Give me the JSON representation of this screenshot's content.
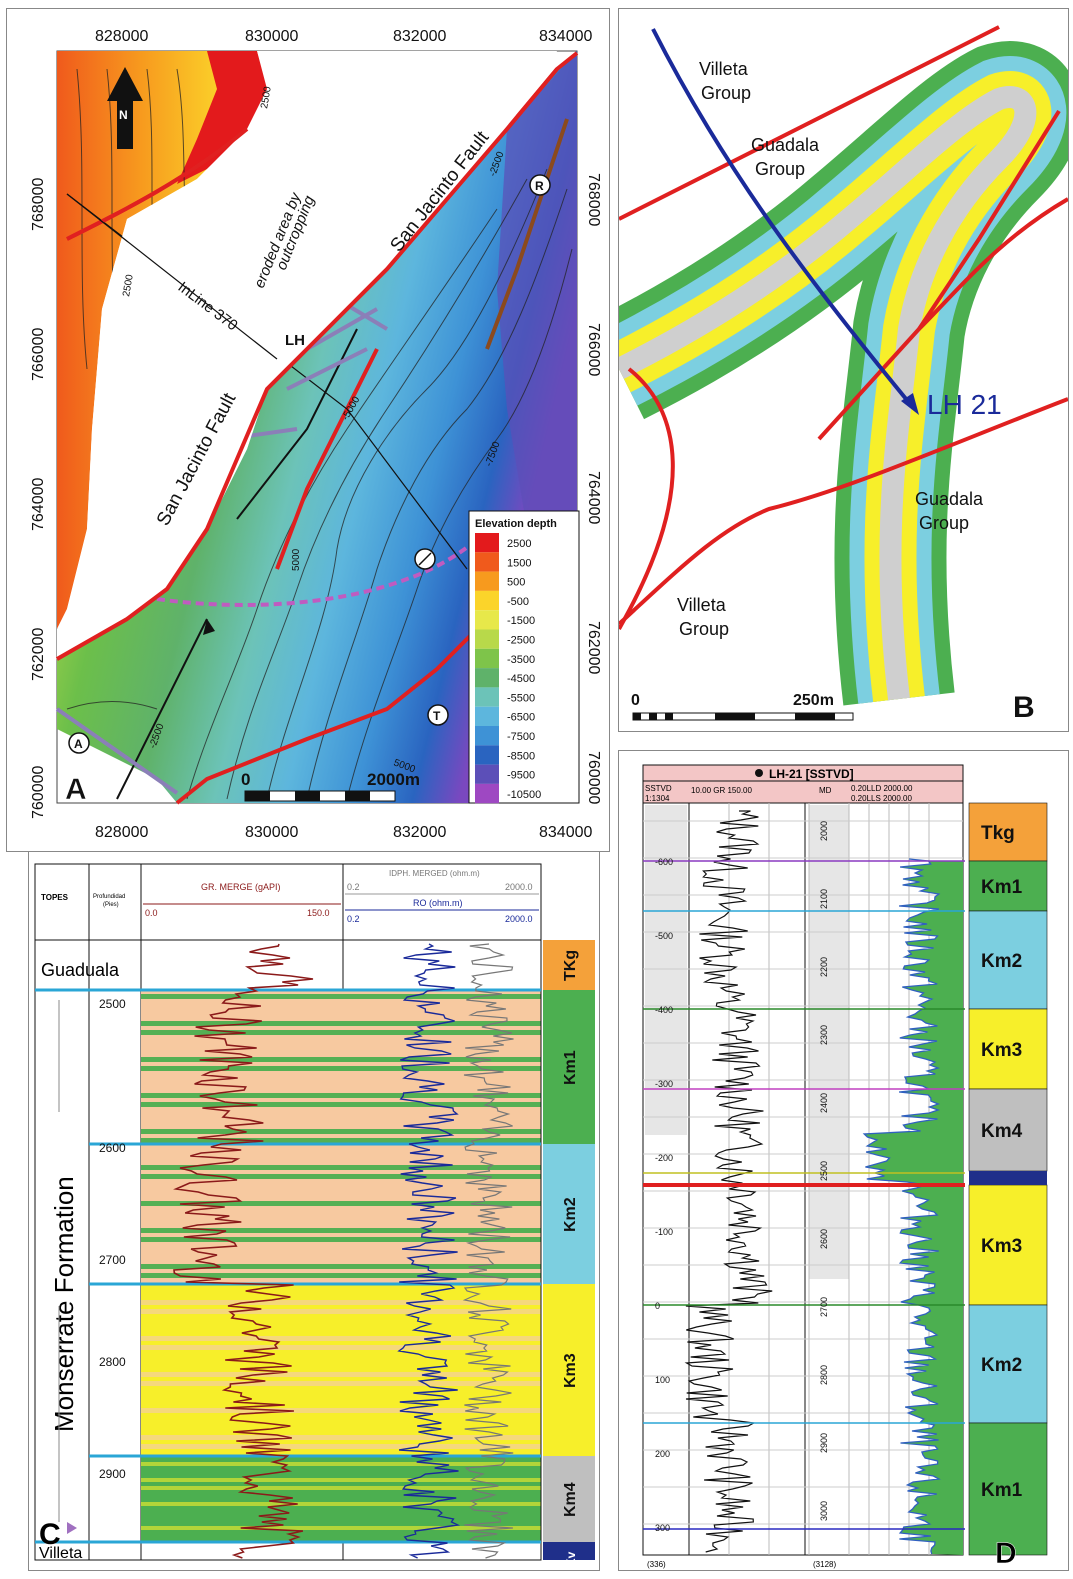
{
  "panel_a": {
    "letter": "A",
    "x_ticks": [
      "828000",
      "830000",
      "832000",
      "834000"
    ],
    "y_ticks": [
      "768000",
      "766000",
      "764000",
      "762000",
      "760000"
    ],
    "north": "N",
    "fault_label": "San Jacinto Fault",
    "eroded": "eroded area by",
    "outcropping": "outcropping",
    "inline": "InLine 370",
    "lh": "LH",
    "markers": [
      "R",
      "A",
      "T"
    ],
    "contours": [
      "2500",
      "2500",
      "-2500",
      "-7500",
      "-5000",
      "5000",
      "5000",
      "-2500"
    ],
    "scale_zero": "0",
    "scale_end": "2000m",
    "legend_title": "Elevation depth",
    "legend": [
      {
        "label": "2500",
        "color": "#e31a1c"
      },
      {
        "label": "1500",
        "color": "#f05a1c"
      },
      {
        "label": "500",
        "color": "#f79a1e"
      },
      {
        "label": "-500",
        "color": "#fbd42a"
      },
      {
        "label": "-1500",
        "color": "#e7e84a"
      },
      {
        "label": "-2500",
        "color": "#b8d94a"
      },
      {
        "label": "-3500",
        "color": "#7ec44a"
      },
      {
        "label": "-4500",
        "color": "#5fb26a"
      },
      {
        "label": "-5500",
        "color": "#6cc3b8"
      },
      {
        "label": "-6500",
        "color": "#5db6dd"
      },
      {
        "label": "-7500",
        "color": "#3e92d6"
      },
      {
        "label": "-8500",
        "color": "#2a64c0"
      },
      {
        "label": "-9500",
        "color": "#5c4fb8"
      },
      {
        "label": "-10500",
        "color": "#9e48c2"
      }
    ]
  },
  "panel_b": {
    "letter": "B",
    "villeta": "Villeta",
    "guadala": "Guadala",
    "group": "Group",
    "well": "LH 21",
    "scale_zero": "0",
    "scale_end": "250m"
  },
  "panel_c": {
    "letter": "C",
    "h_topes": "TOPES",
    "h_prof": "Profundidad",
    "h_prof2": "(Pies)",
    "gr_title": "GR. MERGE (gAPI)",
    "gr_min": "0.0",
    "gr_max": "150.0",
    "idph_title": "IDPH. MERGED (ohm.m)",
    "idph_min": "0.2",
    "idph_max": "2000.0",
    "ro_title": "RO (ohm.m)",
    "ro_min": "0.2",
    "ro_max": "2000.0",
    "guaduala": "Guaduala",
    "formation": "Monserrate Formation",
    "villeta": "Villeta",
    "depths": [
      "2500",
      "2600",
      "2700",
      "2800",
      "2900"
    ],
    "zones": [
      {
        "label": "TKg",
        "color": "#f4a13a"
      },
      {
        "label": "Km1",
        "color": "#4caf50"
      },
      {
        "label": "Km2",
        "color": "#7ccfe0"
      },
      {
        "label": "Km3",
        "color": "#f7ef2a"
      },
      {
        "label": "Km4",
        "color": "#bfbfbf"
      },
      {
        "label": "Kv",
        "color": "#1f2f8a"
      }
    ]
  },
  "panel_d": {
    "letter": "D",
    "title": "LH-21 [SSTVD]",
    "h_sstvd": "SSTVD",
    "h_scale": "1:1304",
    "h_gr": "10.00  GR  150.00",
    "h_md": "MD",
    "h_lld": "0.20LLD   2000.00",
    "h_lls": "0.20LLS   2000.00",
    "sstvd_ticks": [
      "-600",
      "-500",
      "-400",
      "-300",
      "-200",
      "-100",
      "0",
      "100",
      "200",
      "300"
    ],
    "md_ticks": [
      "2000",
      "2100",
      "2200",
      "2300",
      "2400",
      "2500",
      "2600",
      "2700",
      "2800",
      "2900",
      "3000"
    ],
    "bottom_left": "(336)",
    "bottom_md": "(3128)",
    "zones": [
      {
        "label": "Tkg",
        "color": "#f4a13a"
      },
      {
        "label": "Km1",
        "color": "#4caf50"
      },
      {
        "label": "Km2",
        "color": "#7ccfe0"
      },
      {
        "label": "Km3",
        "color": "#f7ef2a"
      },
      {
        "label": "Km4",
        "color": "#bfbfbf"
      },
      {
        "label": "Km3",
        "color": "#f7ef2a"
      },
      {
        "label": "Km2",
        "color": "#7ccfe0"
      },
      {
        "label": "Km1",
        "color": "#4caf50"
      }
    ]
  }
}
